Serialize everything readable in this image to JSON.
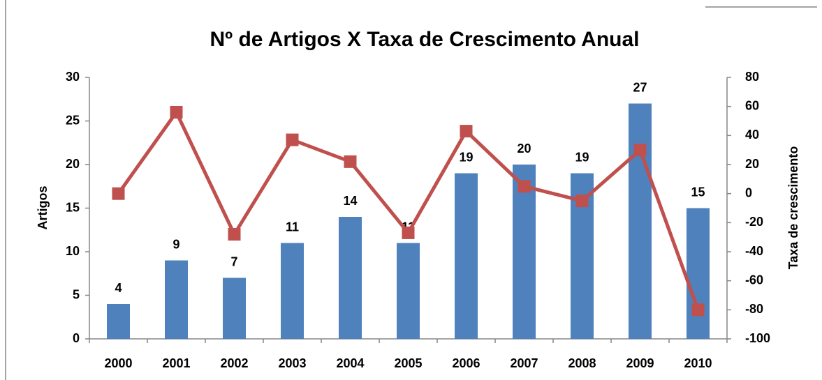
{
  "chart_data": {
    "type": "combo",
    "title": "Nº de Artigos X Taxa de Crescimento Anual",
    "y_label": "Artigos",
    "y2_label": "Taxa de crescimento",
    "categories": [
      "2000",
      "2001",
      "2002",
      "2003",
      "2004",
      "2005",
      "2006",
      "2007",
      "2008",
      "2009",
      "2010"
    ],
    "series": [
      {
        "name": "Artigos",
        "type": "bar",
        "color": "#4f81bd",
        "values": [
          4,
          9,
          7,
          11,
          14,
          11,
          19,
          20,
          19,
          27,
          15
        ]
      },
      {
        "name": "Taxa de crescimento",
        "type": "line",
        "axis": "y2",
        "color": "#c0504d",
        "values": [
          0,
          56,
          -28,
          37,
          22,
          -27,
          43,
          5,
          -5,
          30,
          -80
        ]
      }
    ],
    "ylim": [
      0,
      30
    ],
    "yticks": [
      0,
      5,
      10,
      15,
      20,
      25,
      30
    ],
    "y2lim": [
      -100,
      80
    ],
    "y2ticks": [
      -100,
      -80,
      -60,
      -40,
      -20,
      0,
      20,
      40,
      60,
      80
    ],
    "data_labels": true
  }
}
